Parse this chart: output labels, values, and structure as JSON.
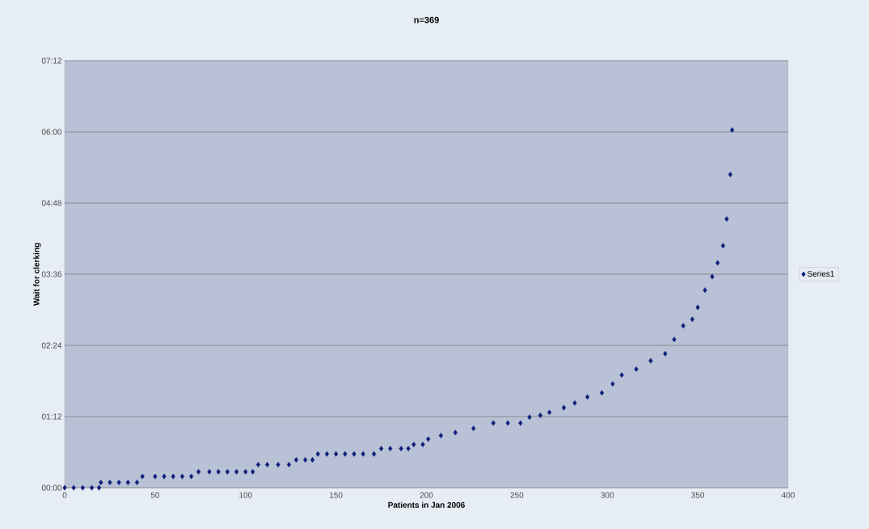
{
  "chart_data": {
    "type": "scatter",
    "title": "n=369",
    "xlabel": "Patients in Jan 2006",
    "ylabel": "Wait for clerking",
    "x": [
      0,
      5,
      10,
      15,
      19,
      20,
      25,
      30,
      35,
      40,
      43,
      50,
      55,
      60,
      65,
      70,
      74,
      80,
      85,
      90,
      95,
      100,
      104,
      107,
      112,
      118,
      124,
      128,
      133,
      137,
      140,
      145,
      150,
      155,
      160,
      165,
      171,
      175,
      180,
      186,
      190,
      193,
      198,
      201,
      208,
      216,
      226,
      237,
      245,
      252,
      257,
      263,
      268,
      276,
      282,
      289,
      297,
      303,
      308,
      316,
      324,
      332,
      337,
      342,
      347,
      350,
      354,
      358,
      361,
      364,
      366,
      368,
      369
    ],
    "series": [
      {
        "name": "Series1",
        "color": "#0d1f7a",
        "values": [
          0,
          0,
          0,
          0,
          0,
          0.09,
          0.09,
          0.09,
          0.09,
          0.09,
          0.19,
          0.19,
          0.19,
          0.19,
          0.19,
          0.19,
          0.27,
          0.27,
          0.27,
          0.27,
          0.27,
          0.27,
          0.27,
          0.39,
          0.39,
          0.39,
          0.39,
          0.47,
          0.47,
          0.47,
          0.57,
          0.57,
          0.57,
          0.57,
          0.57,
          0.57,
          0.57,
          0.66,
          0.66,
          0.66,
          0.66,
          0.73,
          0.73,
          0.82,
          0.88,
          0.93,
          1.0,
          1.09,
          1.09,
          1.09,
          1.19,
          1.22,
          1.27,
          1.35,
          1.43,
          1.53,
          1.6,
          1.75,
          1.9,
          2.0,
          2.14,
          2.26,
          2.5,
          2.73,
          2.84,
          3.04,
          3.33,
          3.56,
          3.79,
          4.08,
          4.53,
          5.28,
          6.03
        ]
      }
    ],
    "xlim": [
      0,
      400
    ],
    "xticks": [
      0,
      50,
      100,
      150,
      200,
      250,
      300,
      350,
      400
    ],
    "ylim": [
      0,
      7.2
    ],
    "yticks": [
      {
        "value": 0,
        "label": "00:00"
      },
      {
        "value": 1.2,
        "label": "01:12"
      },
      {
        "value": 2.4,
        "label": "02:24"
      },
      {
        "value": 3.6,
        "label": "03:36"
      },
      {
        "value": 4.8,
        "label": "04:48"
      },
      {
        "value": 6.0,
        "label": "06:00"
      },
      {
        "value": 7.2,
        "label": "07:12"
      }
    ],
    "grid": "y",
    "legend": "right",
    "marker": "diamond"
  }
}
